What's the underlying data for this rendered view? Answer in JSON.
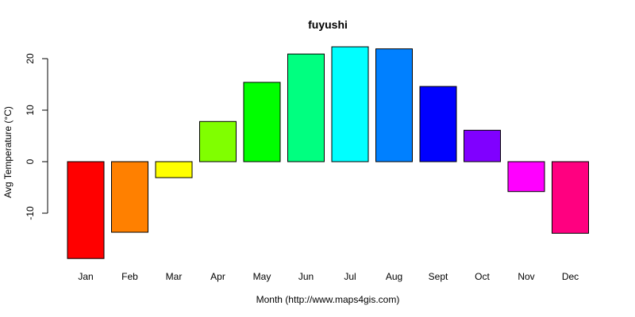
{
  "chart_data": {
    "type": "bar",
    "title": "fuyushi",
    "xlabel": "Month (http://www.maps4gis.com)",
    "ylabel": "Avg Temperature (°C)",
    "categories": [
      "Jan",
      "Feb",
      "Mar",
      "Apr",
      "May",
      "Jun",
      "Jul",
      "Aug",
      "Sept",
      "Oct",
      "Nov",
      "Dec"
    ],
    "values": [
      -18.8,
      -13.7,
      -3.1,
      7.8,
      15.4,
      20.9,
      22.3,
      21.9,
      14.6,
      6.1,
      -5.8,
      -13.9
    ],
    "colors": [
      "#FF0000",
      "#FF8000",
      "#FFFF00",
      "#80FF00",
      "#00FF00",
      "#00FF80",
      "#00FFFF",
      "#0080FF",
      "#0000FF",
      "#8000FF",
      "#FF00FF",
      "#FF0080"
    ],
    "yticks": [
      -10,
      0,
      10,
      20
    ],
    "ylim": [
      -20,
      25
    ],
    "grid": false,
    "legend": "none"
  }
}
